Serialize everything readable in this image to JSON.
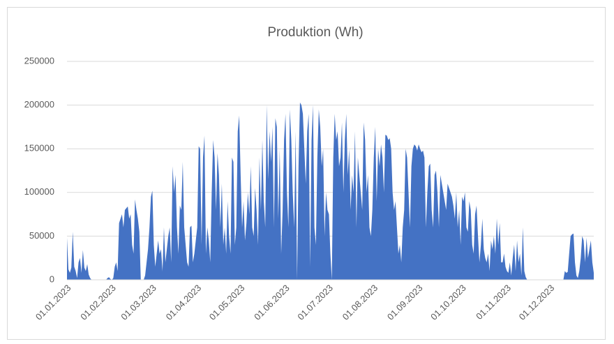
{
  "chart_data": {
    "type": "area",
    "title": "Produktion (Wh)",
    "categories": [
      "01.01.2023",
      null,
      null,
      null,
      null,
      null,
      null,
      null,
      null,
      null,
      null,
      null,
      null,
      null,
      null,
      null,
      null,
      null,
      null,
      null,
      null,
      null,
      null,
      null,
      null,
      null,
      null,
      null,
      null,
      null,
      null,
      "01.02.2023",
      null,
      null,
      null,
      null,
      null,
      null,
      null,
      null,
      null,
      null,
      null,
      null,
      null,
      null,
      null,
      null,
      null,
      null,
      null,
      null,
      null,
      null,
      null,
      null,
      null,
      null,
      null,
      "01.03.2023",
      null,
      null,
      null,
      null,
      null,
      null,
      null,
      null,
      null,
      null,
      null,
      null,
      null,
      null,
      null,
      null,
      null,
      null,
      null,
      null,
      null,
      null,
      null,
      null,
      null,
      null,
      null,
      null,
      null,
      null,
      "01.04.2023",
      null,
      null,
      null,
      null,
      null,
      null,
      null,
      null,
      null,
      null,
      null,
      null,
      null,
      null,
      null,
      null,
      null,
      null,
      null,
      null,
      null,
      null,
      null,
      null,
      null,
      null,
      null,
      null,
      null,
      "01.05.2023",
      null,
      null,
      null,
      null,
      null,
      null,
      null,
      null,
      null,
      null,
      null,
      null,
      null,
      null,
      null,
      null,
      null,
      null,
      null,
      null,
      null,
      null,
      null,
      null,
      null,
      null,
      null,
      null,
      null,
      null,
      "01.06.2023",
      null,
      null,
      null,
      null,
      null,
      null,
      null,
      null,
      null,
      null,
      null,
      null,
      null,
      null,
      null,
      null,
      null,
      null,
      null,
      null,
      null,
      null,
      null,
      null,
      null,
      null,
      null,
      null,
      null,
      "01.07.2023",
      null,
      null,
      null,
      null,
      null,
      null,
      null,
      null,
      null,
      null,
      null,
      null,
      null,
      null,
      null,
      null,
      null,
      null,
      null,
      null,
      null,
      null,
      null,
      null,
      null,
      null,
      null,
      null,
      null,
      null,
      "01.08.2023",
      null,
      null,
      null,
      null,
      null,
      null,
      null,
      null,
      null,
      null,
      null,
      null,
      null,
      null,
      null,
      null,
      null,
      null,
      null,
      null,
      null,
      null,
      null,
      null,
      null,
      null,
      null,
      null,
      null,
      null,
      "01.09.2023",
      null,
      null,
      null,
      null,
      null,
      null,
      null,
      null,
      null,
      null,
      null,
      null,
      null,
      null,
      null,
      null,
      null,
      null,
      null,
      null,
      null,
      null,
      null,
      null,
      null,
      null,
      null,
      null,
      null,
      "01.10.2023",
      null,
      null,
      null,
      null,
      null,
      null,
      null,
      null,
      null,
      null,
      null,
      null,
      null,
      null,
      null,
      null,
      null,
      null,
      null,
      null,
      null,
      null,
      null,
      null,
      null,
      null,
      null,
      null,
      null,
      null,
      "01.11.2023",
      null,
      null,
      null,
      null,
      null,
      null,
      null,
      null,
      null,
      null,
      null,
      null,
      null,
      null,
      null,
      null,
      null,
      null,
      null,
      null,
      null,
      null,
      null,
      null,
      null,
      null,
      null,
      null,
      null,
      "01.12.2023",
      null,
      null,
      null,
      null,
      null,
      null,
      null,
      null,
      null,
      null,
      null,
      null,
      null,
      null,
      null,
      null,
      null,
      null,
      null,
      null,
      null,
      null,
      null,
      null,
      null,
      null,
      null,
      null,
      null,
      null
    ],
    "values": [
      48000,
      12000,
      8000,
      14000,
      55000,
      15000,
      10000,
      2000,
      20000,
      25000,
      8000,
      34000,
      14000,
      10000,
      18000,
      6000,
      2000,
      0,
      0,
      0,
      0,
      0,
      0,
      0,
      0,
      0,
      0,
      0,
      2000,
      3000,
      1000,
      0,
      2000,
      15000,
      20000,
      10000,
      65000,
      70000,
      75000,
      60000,
      80000,
      82000,
      84000,
      70000,
      75000,
      40000,
      30000,
      92000,
      80000,
      70000,
      55000,
      0,
      0,
      0,
      5000,
      20000,
      35000,
      60000,
      95000,
      102000,
      40000,
      15000,
      30000,
      45000,
      30000,
      35000,
      10000,
      60000,
      20000,
      35000,
      50000,
      60000,
      20000,
      130000,
      100000,
      120000,
      60000,
      30000,
      85000,
      80000,
      135000,
      60000,
      40000,
      20000,
      15000,
      60000,
      62000,
      20000,
      30000,
      45000,
      60000,
      153000,
      150000,
      40000,
      140000,
      165000,
      30000,
      60000,
      45000,
      20000,
      100000,
      160000,
      140000,
      80000,
      145000,
      120000,
      60000,
      110000,
      40000,
      60000,
      30000,
      90000,
      50000,
      30000,
      140000,
      135000,
      40000,
      60000,
      170000,
      188000,
      120000,
      60000,
      90000,
      45000,
      65000,
      100000,
      75000,
      130000,
      60000,
      50000,
      105000,
      80000,
      40000,
      140000,
      80000,
      160000,
      90000,
      60000,
      200000,
      115000,
      170000,
      135000,
      175000,
      60000,
      185000,
      175000,
      70000,
      150000,
      30000,
      80000,
      160000,
      190000,
      100000,
      60000,
      195000,
      160000,
      100000,
      60000,
      170000,
      0,
      130000,
      203000,
      200000,
      190000,
      150000,
      110000,
      170000,
      190000,
      15000,
      160000,
      200000,
      60000,
      40000,
      140000,
      195000,
      175000,
      130000,
      150000,
      50000,
      100000,
      80000,
      75000,
      30000,
      0,
      140000,
      190000,
      160000,
      170000,
      130000,
      140000,
      180000,
      100000,
      160000,
      190000,
      120000,
      150000,
      80000,
      120000,
      100000,
      170000,
      60000,
      140000,
      120000,
      100000,
      80000,
      180000,
      160000,
      100000,
      120000,
      60000,
      50000,
      80000,
      140000,
      175000,
      90000,
      150000,
      130000,
      155000,
      140000,
      100000,
      166000,
      165000,
      160000,
      162000,
      150000,
      100000,
      80000,
      90000,
      60000,
      30000,
      40000,
      20000,
      60000,
      80000,
      150000,
      140000,
      100000,
      60000,
      130000,
      150000,
      155000,
      153000,
      148000,
      155000,
      150000,
      146000,
      148000,
      140000,
      60000,
      100000,
      130000,
      133000,
      80000,
      60000,
      120000,
      125000,
      100000,
      60000,
      120000,
      110000,
      100000,
      90000,
      80000,
      110000,
      105000,
      100000,
      95000,
      85000,
      70000,
      100000,
      60000,
      80000,
      40000,
      95000,
      90000,
      100000,
      60000,
      55000,
      90000,
      80000,
      40000,
      30000,
      75000,
      85000,
      50000,
      20000,
      40000,
      70000,
      35000,
      25000,
      20000,
      30000,
      10000,
      45000,
      35000,
      50000,
      30000,
      70000,
      40000,
      65000,
      20000,
      20000,
      30000,
      15000,
      10000,
      8000,
      20000,
      5000,
      25000,
      40000,
      10000,
      45000,
      20000,
      30000,
      5000,
      60000,
      10000,
      3000,
      0,
      0,
      0,
      0,
      0,
      0,
      0,
      0,
      0,
      0,
      0,
      0,
      0,
      0,
      0,
      0,
      0,
      0,
      0,
      0,
      0,
      0,
      0,
      0,
      0,
      0,
      10000,
      8000,
      9000,
      30000,
      50000,
      52000,
      53000,
      20000,
      5000,
      2000,
      10000,
      25000,
      50000,
      45000,
      20000,
      48000,
      25000,
      35000,
      45000,
      20000,
      8000
    ],
    "color": "#4472c4",
    "ylim": [
      0,
      250000
    ],
    "yticks": [
      0,
      50000,
      100000,
      150000,
      200000,
      250000
    ],
    "grid": true
  }
}
